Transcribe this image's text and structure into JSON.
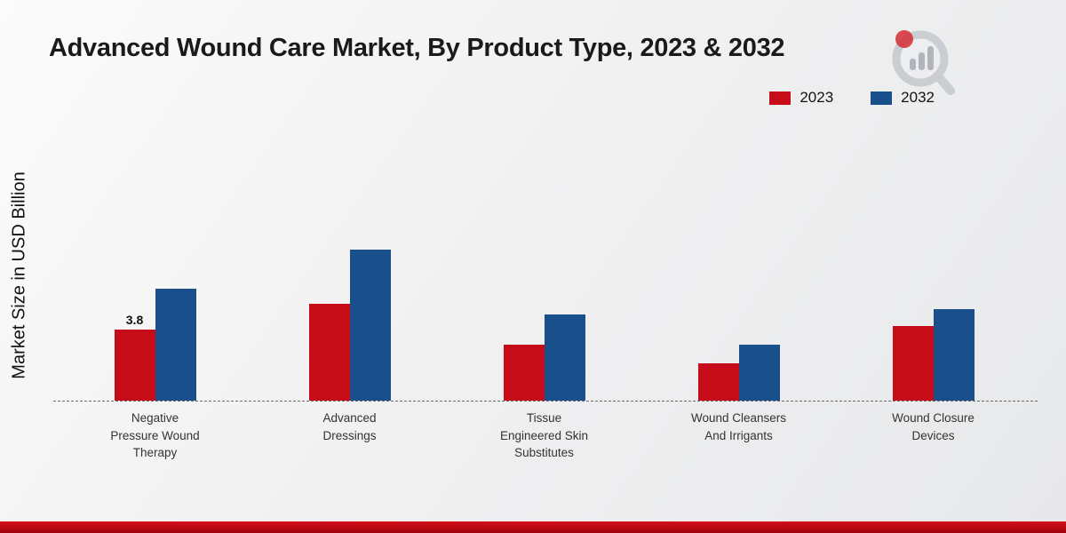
{
  "page": {
    "title": "Advanced Wound Care Market, By Product Type, 2023 & 2032",
    "y_axis_label": "Market Size in USD Billion"
  },
  "legend": {
    "items": [
      {
        "label": "2023",
        "color": "#c60c18"
      },
      {
        "label": "2032",
        "color": "#19508c"
      }
    ]
  },
  "colors": {
    "series_2023": "#c60c18",
    "series_2032": "#19508c",
    "footer_band": "#c00a12",
    "baseline": "#6b6b6b"
  },
  "logo": {
    "icon": "bar-chart-magnifier-logo"
  },
  "chart_data": {
    "type": "bar",
    "title": "Advanced Wound Care Market, By Product Type, 2023 & 2032",
    "xlabel": "",
    "ylabel": "Market Size in USD Billion",
    "categories": [
      "Negative Pressure Wound Therapy",
      "Advanced Dressings",
      "Tissue Engineered Skin Substitutes",
      "Wound Cleansers And Irrigants",
      "Wound Closure Devices"
    ],
    "series": [
      {
        "name": "2023",
        "color": "#c60c18",
        "values": [
          3.8,
          5.2,
          3.0,
          2.0,
          4.0
        ]
      },
      {
        "name": "2032",
        "color": "#19508c",
        "values": [
          6.0,
          8.1,
          4.6,
          3.0,
          4.9
        ]
      }
    ],
    "value_labels": [
      {
        "series": "2023",
        "category_index": 0,
        "text": "3.8"
      }
    ],
    "ylim": [
      0,
      9
    ],
    "grid": false,
    "legend_position": "top-right",
    "baseline_style": "dashed"
  }
}
